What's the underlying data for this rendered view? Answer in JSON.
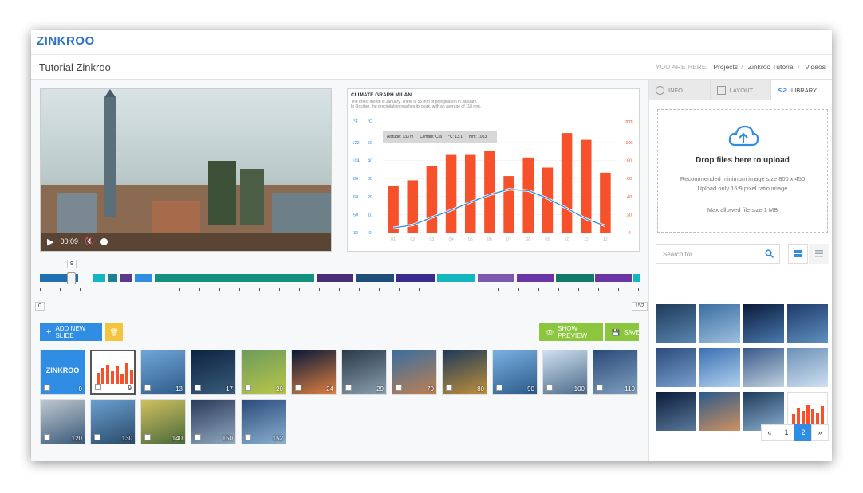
{
  "app": {
    "logo": "ZINKROO",
    "page_title": "Tutorial Zinkroo"
  },
  "breadcrumb": {
    "you_are_here": "YOU ARE HERE:",
    "items": [
      "Projects",
      "Zinkroo Tutorial",
      "Videos"
    ]
  },
  "video": {
    "time": "00:09"
  },
  "climate": {
    "title": "CLIMATE GRAPH MILAN",
    "desc1": "The driest month is January. There is 55 mm of precipitation in January.",
    "desc2": "In October, the precipitation reaches its peak, with an average of 118 mm.",
    "unit_f": "°F",
    "unit_c": "°C",
    "unit_mm": "mm",
    "info_altitude": "Altitude: 133 m",
    "info_climate": "Climate: Cfa",
    "info_temp": "°C: 13.1",
    "info_mm": "mm: 1013",
    "f_ticks": [
      "122",
      "104",
      "86",
      "68",
      "50",
      "32"
    ],
    "c_ticks": [
      "50",
      "40",
      "30",
      "20",
      "10",
      "0"
    ],
    "mm_ticks": [
      "100",
      "80",
      "60",
      "40",
      "20",
      "0"
    ],
    "x_ticks": [
      "01",
      "02",
      "03",
      "04",
      "05",
      "06",
      "07",
      "08",
      "09",
      "10",
      "11",
      "12"
    ]
  },
  "chart_data": {
    "type": "bar",
    "title": "CLIMATE GRAPH MILAN",
    "categories": [
      "01",
      "02",
      "03",
      "04",
      "05",
      "06",
      "07",
      "08",
      "09",
      "10",
      "11",
      "12"
    ],
    "series": [
      {
        "name": "",
        "type": "bar",
        "values": [
          55,
          62,
          79,
          93,
          93,
          97,
          67,
          89,
          77,
          118,
          110,
          71
        ]
      },
      {
        "name": "",
        "type": "line",
        "values": [
          2.6,
          4.2,
          8.4,
          12.4,
          16.8,
          21,
          24,
          23.3,
          19,
          13.4,
          7.6,
          3.7
        ]
      }
    ],
    "ylim_mm": [
      0,
      120
    ],
    "ylim_c": [
      0,
      50
    ]
  },
  "timeline": {
    "marker": "9",
    "start": "0",
    "end": "152"
  },
  "toolbar": {
    "add_slide": "ADD NEW SLIDE",
    "show_preview": "SHOW PREVIEW",
    "save": "SAVE"
  },
  "slides": [
    {
      "num": "0"
    },
    {
      "num": "9"
    },
    {
      "num": "13"
    },
    {
      "num": "17"
    },
    {
      "num": "20"
    },
    {
      "num": "24"
    },
    {
      "num": "29"
    },
    {
      "num": "70"
    },
    {
      "num": "80"
    },
    {
      "num": "90"
    },
    {
      "num": "100"
    },
    {
      "num": "110"
    },
    {
      "num": "120"
    },
    {
      "num": "130"
    },
    {
      "num": "140"
    },
    {
      "num": "150"
    },
    {
      "num": "152"
    }
  ],
  "sidebar": {
    "tabs": [
      "INFO",
      "LAYOUT",
      "LIBRARY"
    ],
    "drop_title": "Drop files here to upload",
    "drop_line1": "Recommended minimum image size 800 x 450",
    "drop_line2": "Upload only 16:9 pixel ratio image",
    "drop_line3": "Max allowed file size 1 MB",
    "search_placeholder": "Search for...",
    "pager": [
      "«",
      "1",
      "2",
      "»"
    ]
  },
  "colors": {
    "accent": "#2f8de4",
    "bar": "#f6512a",
    "green": "#8cc63e",
    "yellow": "#f3c53c"
  }
}
